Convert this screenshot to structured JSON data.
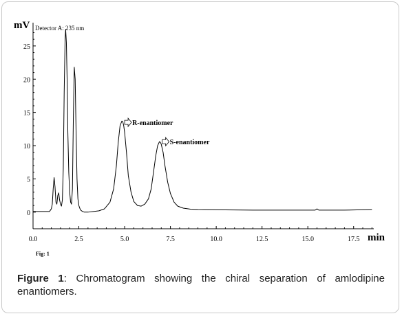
{
  "chart_data": {
    "type": "line",
    "ylabel": "mV",
    "xlabel": "min",
    "detector_label": "Detector A: 235 nm",
    "xlim": [
      0,
      18.6
    ],
    "ylim": [
      -2.5,
      28.5
    ],
    "x_ticks": [
      0.0,
      2.5,
      5.0,
      7.5,
      10.0,
      12.5,
      15.0,
      17.5
    ],
    "x_tick_labels": [
      "0.0",
      "2.5",
      "5.0",
      "7.5",
      "10.0",
      "12.5",
      "15.0",
      "17.5"
    ],
    "y_ticks": [
      0,
      5,
      10,
      15,
      20,
      25
    ],
    "y_tick_labels": [
      "0",
      "5",
      "10",
      "15",
      "20",
      "25"
    ],
    "series": [
      {
        "color": "#000000",
        "x": [
          0.0,
          0.9,
          1.0,
          1.05,
          1.1,
          1.15,
          1.2,
          1.25,
          1.3,
          1.35,
          1.4,
          1.45,
          1.5,
          1.55,
          1.6,
          1.65,
          1.7,
          1.75,
          1.78,
          1.82,
          1.86,
          1.9,
          1.95,
          2.0,
          2.05,
          2.1,
          2.15,
          2.2,
          2.25,
          2.3,
          2.35,
          2.4,
          2.45,
          2.5,
          2.55,
          2.6,
          2.7,
          2.8,
          3.0,
          3.3,
          3.6,
          3.9,
          4.2,
          4.4,
          4.55,
          4.65,
          4.75,
          4.85,
          4.9,
          4.95,
          5.0,
          5.1,
          5.2,
          5.35,
          5.5,
          5.7,
          5.9,
          6.1,
          6.3,
          6.45,
          6.6,
          6.7,
          6.8,
          6.9,
          6.95,
          7.0,
          7.1,
          7.2,
          7.35,
          7.5,
          7.7,
          7.9,
          8.2,
          8.6,
          9.0,
          10.0,
          12.0,
          14.0,
          15.4,
          15.5,
          15.6,
          17.0,
          18.5
        ],
        "values": [
          0.1,
          0.1,
          0.5,
          1.2,
          3.5,
          5.2,
          3.8,
          1.5,
          1.2,
          2.5,
          2.9,
          1.8,
          1.2,
          0.9,
          1.8,
          6.5,
          18.0,
          26.0,
          27.5,
          25.5,
          20.0,
          12.0,
          6.0,
          3.0,
          1.5,
          1.2,
          3.5,
          14.0,
          21.8,
          20.0,
          12.0,
          5.0,
          2.0,
          1.0,
          0.6,
          0.3,
          0.1,
          0.0,
          0.0,
          0.1,
          0.2,
          0.5,
          1.5,
          3.5,
          7.0,
          10.5,
          13.0,
          13.7,
          13.6,
          13.0,
          12.0,
          9.0,
          5.5,
          3.0,
          1.6,
          1.0,
          0.9,
          1.2,
          2.0,
          3.5,
          6.5,
          8.5,
          10.0,
          10.6,
          10.5,
          10.2,
          9.0,
          7.0,
          4.5,
          2.8,
          1.5,
          0.9,
          0.6,
          0.45,
          0.4,
          0.35,
          0.3,
          0.3,
          0.3,
          0.5,
          0.3,
          0.3,
          0.4
        ]
      }
    ],
    "annotations": [
      {
        "text": "R-enantiomer",
        "x": 5.0,
        "y": 13.5
      },
      {
        "text": "S-enantiomer",
        "x": 7.05,
        "y": 10.6
      }
    ]
  },
  "figure_label": "Fig: 1",
  "caption": {
    "bold": "Figure 1",
    "text": ": Chromatogram showing the chiral separation of amlodipine enantiomers."
  }
}
